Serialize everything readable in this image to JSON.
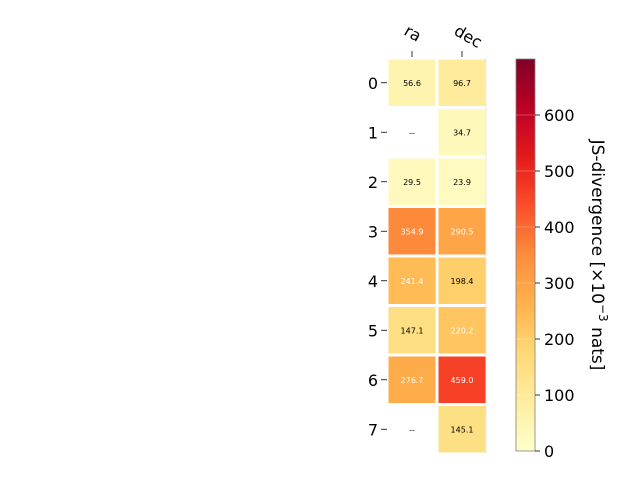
{
  "chart_data": {
    "type": "heatmap",
    "columns": [
      "ra",
      "dec"
    ],
    "rows": [
      "0",
      "1",
      "2",
      "3",
      "4",
      "5",
      "6",
      "7"
    ],
    "values": [
      [
        56.6,
        96.7
      ],
      [
        null,
        34.7
      ],
      [
        29.5,
        23.9
      ],
      [
        354.9,
        290.5
      ],
      [
        241.4,
        198.4
      ],
      [
        147.1,
        220.2
      ],
      [
        276.7,
        459.0
      ],
      [
        null,
        145.1
      ]
    ],
    "cell_labels": [
      [
        "56.6",
        "96.7"
      ],
      [
        "--",
        "34.7"
      ],
      [
        "29.5",
        "23.9"
      ],
      [
        "354.9",
        "290.5"
      ],
      [
        "241.4",
        "198.4"
      ],
      [
        "147.1",
        "220.2"
      ],
      [
        "276.7",
        "459.0"
      ],
      [
        "--",
        "145.1"
      ]
    ],
    "missing_label": "--",
    "colorbar": {
      "label_prefix": "JS-divergence [×10",
      "label_exp": "−3",
      "label_suffix": " nats]",
      "range": [
        0,
        700
      ],
      "ticks": [
        0,
        100,
        200,
        300,
        400,
        500,
        600
      ],
      "colormap": "YlOrRd"
    },
    "grid": false
  }
}
